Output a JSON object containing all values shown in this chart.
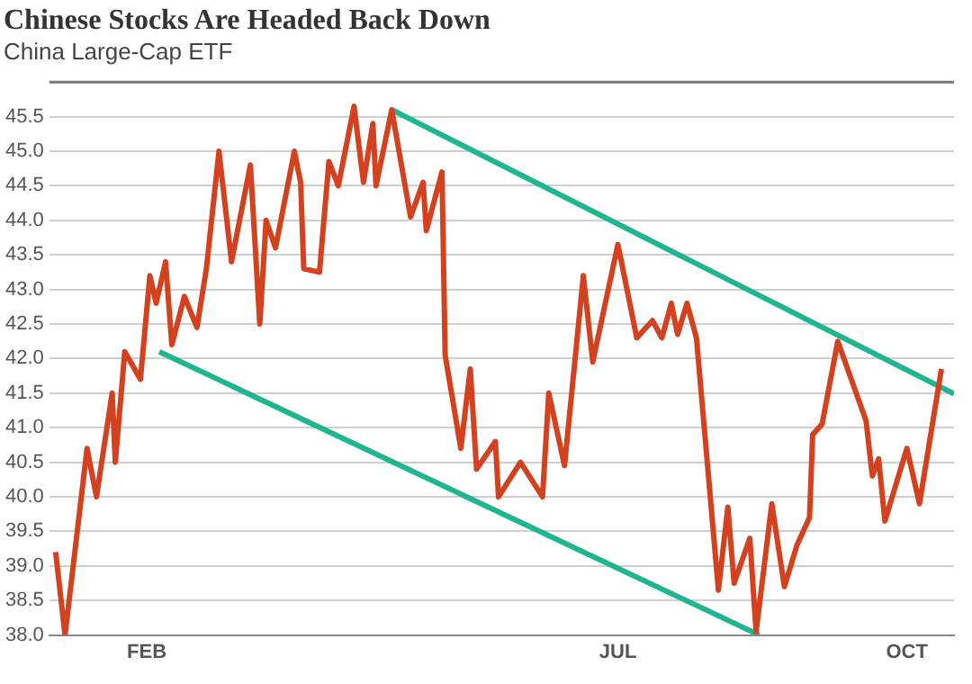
{
  "chart_data": {
    "type": "line",
    "title": "Chinese Stocks Are Headed Back Down",
    "subtitle": "China Large-Cap ETF",
    "xlim": [
      "--01-01",
      "--10-16"
    ],
    "xticks": [
      {
        "value": "--02-01",
        "label": "FEB"
      },
      {
        "value": "--07-01",
        "label": "JUL"
      },
      {
        "value": "--10-01",
        "label": "OCT"
      }
    ],
    "ylim": [
      38,
      46
    ],
    "yticks": [
      {
        "value": 38,
        "label": "38.0"
      },
      38.5,
      {
        "value": 39,
        "label": "39.0"
      },
      39.5,
      {
        "value": 40,
        "label": "40.0"
      },
      40.5,
      {
        "value": 41,
        "label": "41.0"
      },
      41.5,
      {
        "value": 42,
        "label": "42.0"
      },
      42.5,
      {
        "value": 43,
        "label": "43.0"
      },
      43.5,
      {
        "value": 44,
        "label": "44.0"
      },
      44.5,
      {
        "value": 45,
        "label": "45.0"
      },
      45.5
    ],
    "grid": "y",
    "series": [
      {
        "color": "#d4411e",
        "x": [
          "--01-03",
          "--01-06",
          "--01-13",
          "--01-16",
          "--01-21",
          "--01-22",
          "--01-25",
          "--01-30",
          "--02-02",
          "--02-04",
          "--02-07",
          "--02-09",
          "--02-13",
          "--02-17",
          "--02-20",
          "--02-24",
          "--02-28",
          "--03-06",
          "--03-09",
          "--03-11",
          "--03-14",
          "--03-20",
          "--03-22",
          "--03-23",
          "--03-28",
          "--03-31",
          "--04-03",
          "--04-08",
          "--04-11",
          "--04-14",
          "--04-15",
          "--04-20",
          "--04-26",
          "--04-30",
          "--05-01",
          "--05-06",
          "--05-07",
          "--05-12",
          "--05-15",
          "--05-17",
          "--05-23",
          "--05-24",
          "--05-31",
          "--06-07",
          "--06-09",
          "--06-14",
          "--06-20",
          "--06-23",
          "--07-01",
          "--07-07",
          "--07-12",
          "--07-15",
          "--07-18",
          "--07-20",
          "--07-23",
          "--07-26",
          "--08-02",
          "--08-05",
          "--08-07",
          "--08-12",
          "--08-14",
          "--08-19",
          "--08-23",
          "--08-27",
          "--08-31",
          "--09-01",
          "--09-04",
          "--09-09",
          "--09-18",
          "--09-20",
          "--09-22",
          "--09-24",
          "--10-01",
          "--10-05",
          "--10-12"
        ],
        "values": [
          39.2,
          38.0,
          40.7,
          40.0,
          41.5,
          40.5,
          42.1,
          41.7,
          43.2,
          42.8,
          43.4,
          42.2,
          42.9,
          42.45,
          43.3,
          45.0,
          43.4,
          44.8,
          42.5,
          44.0,
          43.6,
          45.0,
          44.55,
          43.3,
          43.25,
          44.85,
          44.5,
          45.65,
          44.55,
          45.4,
          44.5,
          45.6,
          44.05,
          44.55,
          43.85,
          44.7,
          42.05,
          40.7,
          41.85,
          40.4,
          40.8,
          40.0,
          40.5,
          40.0,
          41.5,
          40.45,
          43.2,
          41.95,
          43.65,
          42.3,
          42.55,
          42.3,
          42.8,
          42.35,
          42.8,
          42.3,
          38.65,
          39.85,
          38.75,
          39.4,
          38.05,
          39.9,
          38.7,
          39.3,
          39.7,
          40.9,
          41.05,
          42.25,
          41.1,
          40.3,
          40.55,
          39.65,
          40.7,
          39.9,
          41.85
        ]
      },
      {
        "type": "line",
        "color": "#1fb58f",
        "x": [
          "--04-20",
          "--10-16"
        ],
        "values": [
          45.6,
          41.49
        ]
      },
      {
        "type": "line",
        "color": "#1fb58f",
        "x": [
          "--02-05",
          "--08-15"
        ],
        "values": [
          42.1,
          38.0
        ]
      }
    ]
  }
}
